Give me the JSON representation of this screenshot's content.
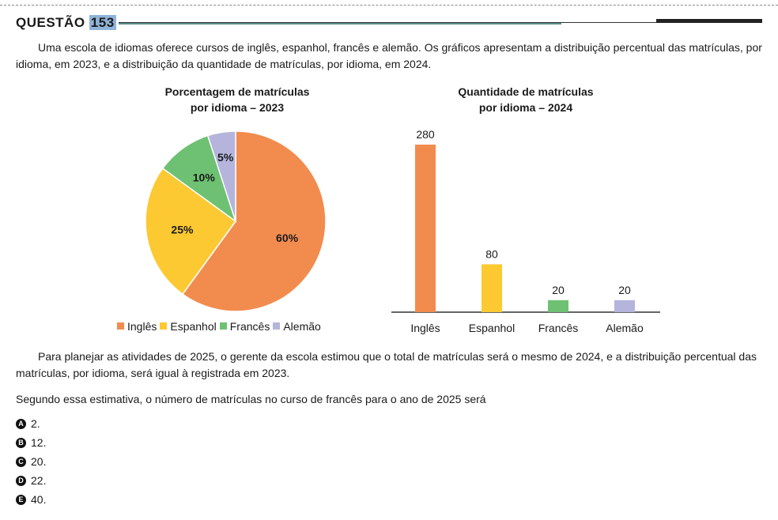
{
  "question": {
    "label": "QUESTÃO",
    "number": "153"
  },
  "intro": "Uma escola de idiomas oferece cursos de inglês, espanhol, francês e alemão. Os gráficos apresentam a distribuição percentual das matrículas, por idioma, em 2023, e a distribuição da quantidade de matrículas, por idioma, em 2024.",
  "chart_data": [
    {
      "type": "pie",
      "title_line1": "Porcentagem de matrículas",
      "title_line2": "por idioma – 2023",
      "categories": [
        "Inglês",
        "Espanhol",
        "Francês",
        "Alemão"
      ],
      "values": [
        60,
        25,
        10,
        5
      ],
      "labels": [
        "60%",
        "25%",
        "10%",
        "5%"
      ],
      "colors": [
        "#f28c4e",
        "#fcc933",
        "#6ec172",
        "#b4b4dc"
      ],
      "legend_position": "bottom"
    },
    {
      "type": "bar",
      "title_line1": "Quantidade de matrículas",
      "title_line2": "por idioma – 2024",
      "categories": [
        "Inglês",
        "Espanhol",
        "Francês",
        "Alemão"
      ],
      "values": [
        280,
        80,
        20,
        20
      ],
      "labels": [
        "280",
        "80",
        "20",
        "20"
      ],
      "colors": [
        "#f28c4e",
        "#fcc933",
        "#6ec172",
        "#b4b4dc"
      ],
      "ylim": [
        0,
        280
      ],
      "grid": false
    }
  ],
  "paragraph2": "Para planejar as atividades de 2025, o gerente da escola estimou que o total de matrículas será o mesmo de 2024, e a distribuição percentual das matrículas, por idioma, será igual à registrada em 2023.",
  "prompt": "Segundo essa estimativa, o número de matrículas no curso de francês para o ano de 2025 será",
  "options": [
    {
      "letter": "A",
      "text": "2."
    },
    {
      "letter": "B",
      "text": "12."
    },
    {
      "letter": "C",
      "text": "20."
    },
    {
      "letter": "D",
      "text": "22."
    },
    {
      "letter": "E",
      "text": "40."
    }
  ]
}
